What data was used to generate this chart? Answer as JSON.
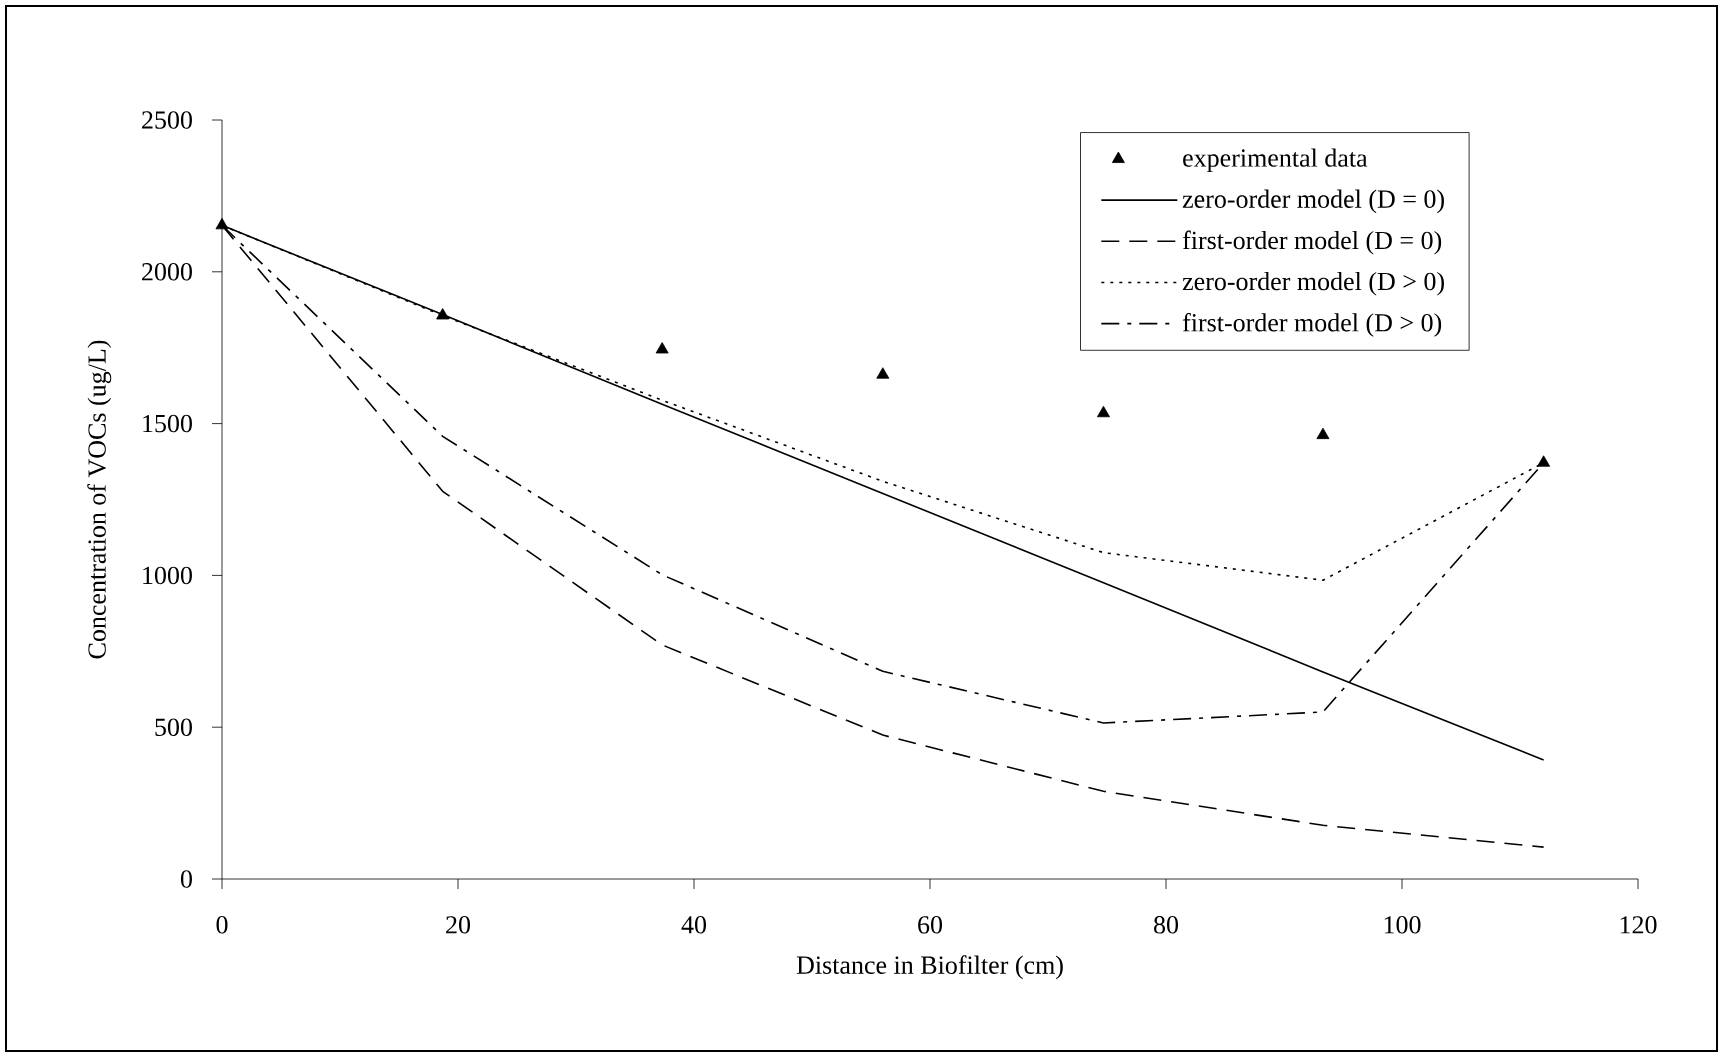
{
  "chart_data": {
    "type": "line",
    "xlabel": "Distance in Biofilter (cm)",
    "ylabel": "Concentration of VOCs (ug/L)",
    "x": [
      0,
      18.7,
      37.3,
      56,
      74.7,
      93.3,
      112
    ],
    "series": [
      {
        "name": "experimental data",
        "type": "scatter",
        "marker": "triangle",
        "color": "#000000",
        "values": [
          2153,
          1856,
          1744,
          1661,
          1534,
          1462,
          1371
        ]
      },
      {
        "name": "zero-order model (D = 0)",
        "line_style": "solid",
        "color": "#000000",
        "values": [
          2153,
          1859,
          1564,
          1270,
          976,
          682,
          392
        ]
      },
      {
        "name": "first-order model (D = 0)",
        "line_style": "dashed",
        "color": "#000000",
        "values": [
          2153,
          1277,
          771,
          474,
          289,
          177,
          105
        ]
      },
      {
        "name": "zero-order model (D > 0)",
        "line_style": "dotted",
        "color": "#000000",
        "values": [
          2153,
          1856,
          1577,
          1310,
          1075,
          984,
          1371
        ]
      },
      {
        "name": "first-order model (D > 0)",
        "line_style": "dashdot",
        "color": "#000000",
        "values": [
          2153,
          1458,
          1002,
          684,
          514,
          550,
          1371
        ]
      }
    ],
    "xlim": [
      0,
      120
    ],
    "ylim": [
      0,
      2500
    ],
    "xticks": [
      0,
      20,
      40,
      60,
      80,
      100,
      120
    ],
    "yticks": [
      0,
      500,
      1000,
      1500,
      2000,
      2500
    ],
    "grid": false,
    "legend": "top right"
  }
}
